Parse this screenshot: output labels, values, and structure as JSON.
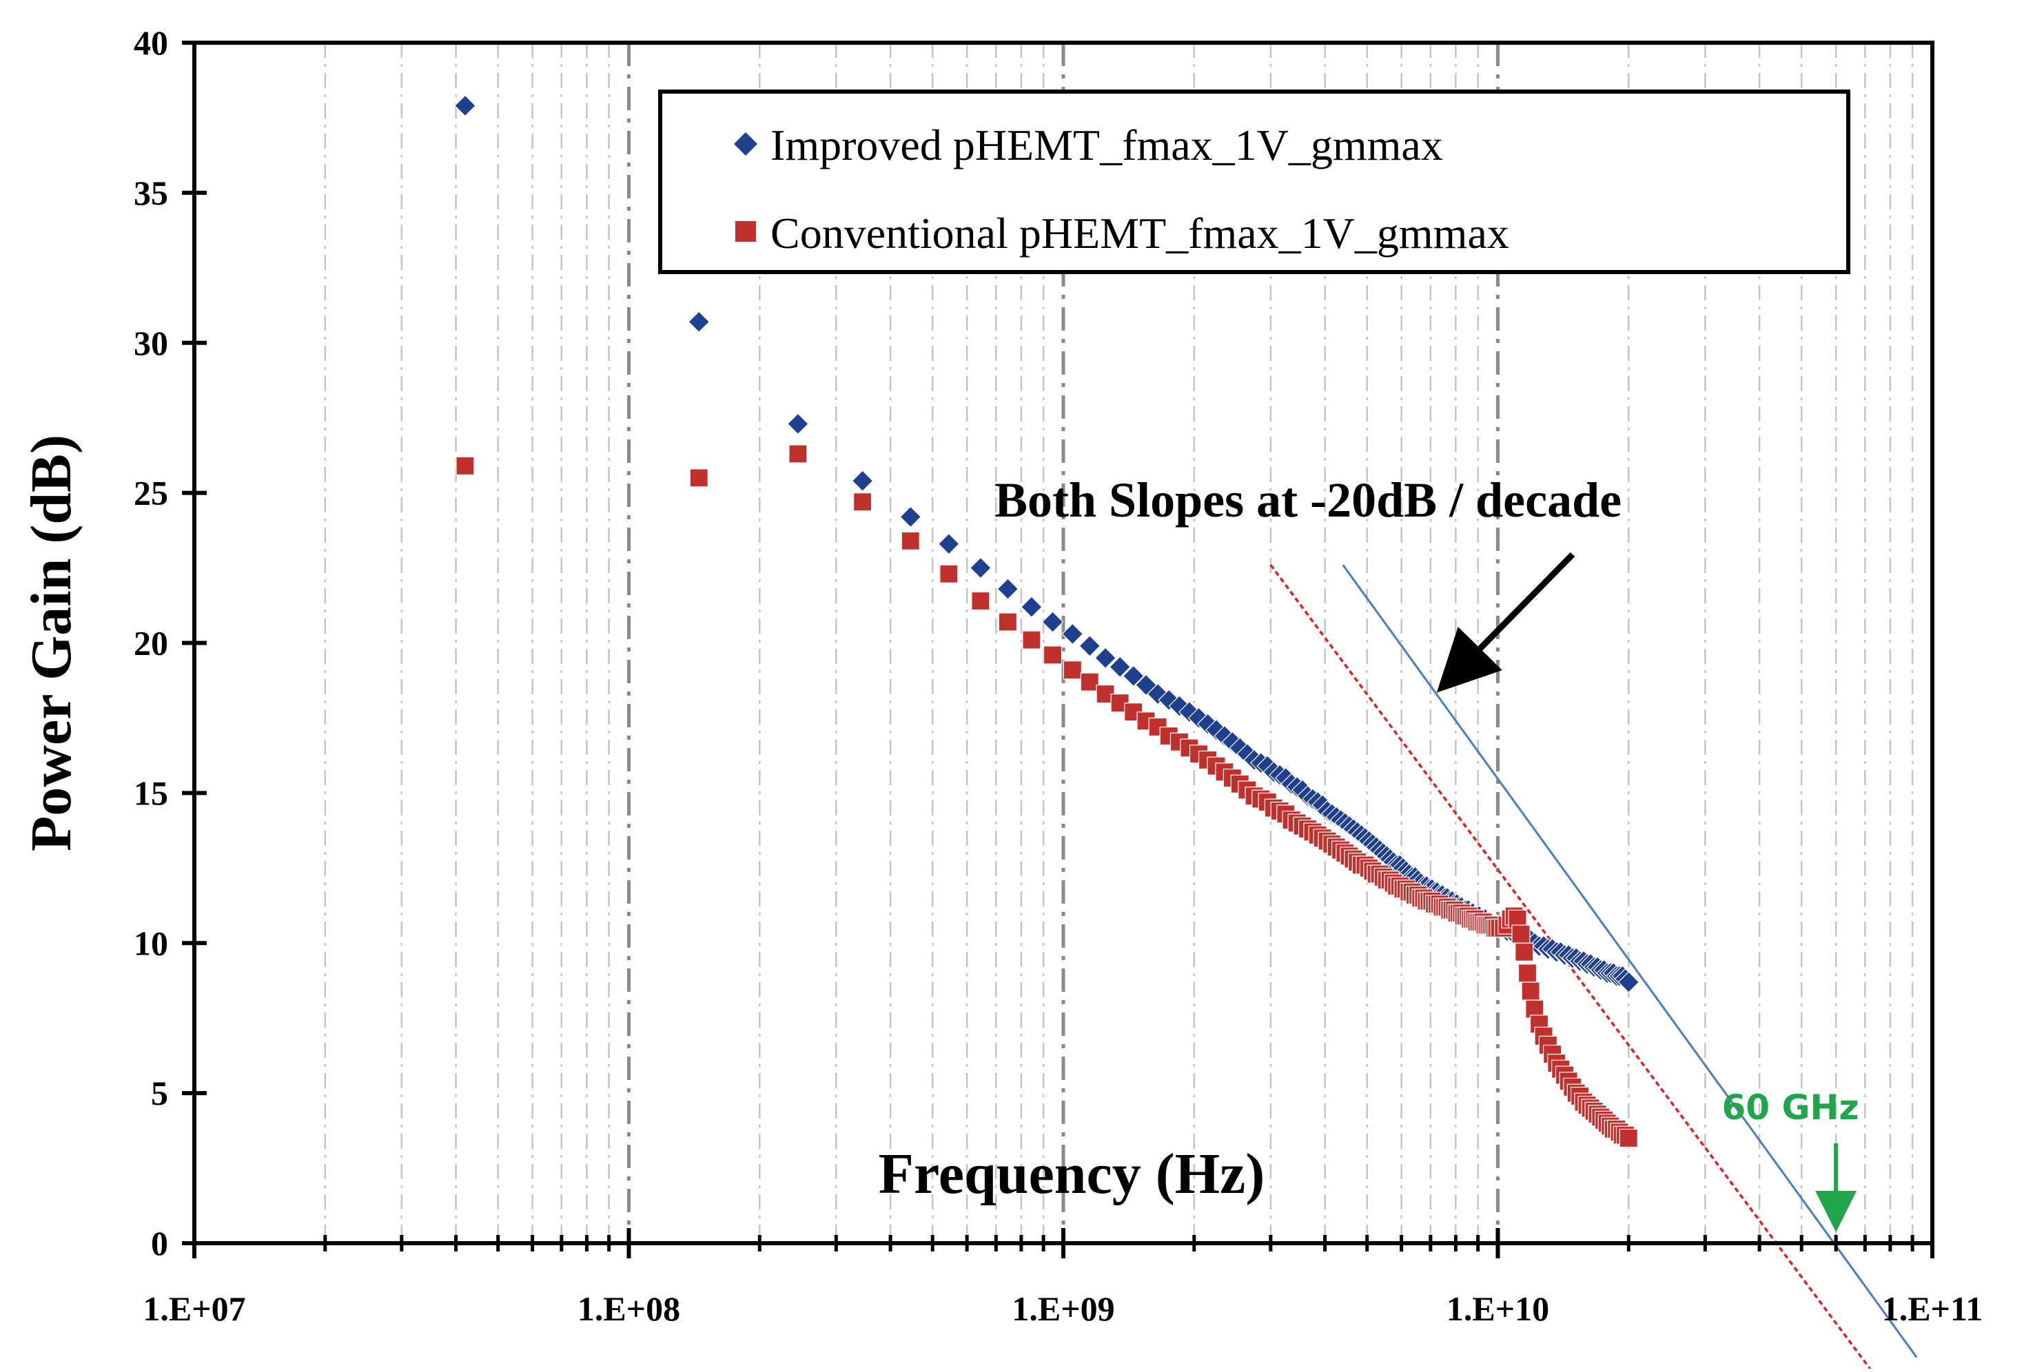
{
  "chart_data": {
    "type": "scatter",
    "xlabel": "Frequency (Hz)",
    "ylabel": "Power Gain (dB)",
    "x_scale": "log",
    "xlim": [
      10000000,
      100000000000
    ],
    "ylim": [
      0,
      40
    ],
    "x_ticks": [
      10000000,
      100000000,
      1000000000,
      10000000000,
      100000000000
    ],
    "x_tick_labels": [
      "1.E+07",
      "1.E+08",
      "1.E+09",
      "1.E+10",
      "1.E+11"
    ],
    "y_ticks": [
      0,
      5,
      10,
      15,
      20,
      25,
      30,
      35,
      40
    ],
    "y_tick_labels": [
      "0",
      "5",
      "10",
      "15",
      "20",
      "25",
      "30",
      "35",
      "40"
    ],
    "grid": "vertical dashed, major and minor",
    "legend_position": "top-right",
    "series": [
      {
        "name": "Improved pHEMT_fmax_1V_gmmax",
        "marker": "diamond",
        "color": "#1f3f8f",
        "x": [
          42000000,
          145000000,
          245000000,
          345000000,
          445000000,
          545000000,
          645000000,
          745000000,
          845000000,
          945000000,
          1050000000,
          1150000000,
          1250000000,
          1350000000,
          1450000000,
          1550000000,
          1650000000,
          1750000000,
          1850000000,
          1950000000,
          2050000000,
          2150000000,
          2250000000,
          2350000000,
          2450000000,
          2550000000,
          2650000000,
          2750000000,
          2850000000,
          2950000000,
          3050000000,
          3150000000,
          3250000000,
          3350000000,
          3450000000,
          3550000000,
          3650000000,
          3750000000,
          3850000000,
          3950000000,
          4050000000,
          4150000000,
          4250000000,
          4350000000,
          4450000000,
          4550000000,
          4650000000,
          4750000000,
          4850000000,
          4950000000,
          5050000000,
          5150000000,
          5250000000,
          5350000000,
          5450000000,
          5550000000,
          5650000000,
          5750000000,
          5850000000,
          5950000000,
          6050000000,
          6150000000,
          6250000000,
          6350000000,
          6450000000,
          6550000000,
          6650000000,
          6750000000,
          6850000000,
          6950000000,
          7050000000,
          7150000000,
          7250000000,
          7350000000,
          7450000000,
          7550000000,
          7650000000,
          7750000000,
          7850000000,
          7950000000,
          8050000000,
          8150000000,
          8250000000,
          8350000000,
          8450000000,
          8550000000,
          8650000000,
          8750000000,
          8850000000,
          8950000000,
          9050000000,
          9150000000,
          9250000000,
          9350000000,
          9450000000,
          9550000000,
          9650000000,
          9750000000,
          9850000000,
          9950000000,
          10100000000,
          10300000000,
          10500000000,
          10700000000,
          10900000000,
          11100000000,
          11300000000,
          11500000000,
          11700000000,
          11900000000,
          12150000000,
          12450000000,
          12750000000,
          13050000000,
          13350000000,
          13650000000,
          13950000000,
          14250000000,
          14550000000,
          14850000000,
          15150000000,
          15450000000,
          15750000000,
          16050000000,
          16350000000,
          16650000000,
          16950000000,
          17250000000,
          17550000000,
          17850000000,
          18150000000,
          18450000000,
          18750000000,
          19050000000,
          19350000000,
          19650000000,
          20000000000
        ],
        "y": [
          37.9,
          30.7,
          27.3,
          25.4,
          24.2,
          23.3,
          22.5,
          21.8,
          21.2,
          20.7,
          20.3,
          19.9,
          19.5,
          19.2,
          18.9,
          18.6,
          18.3,
          18.1,
          17.9,
          17.7,
          17.5,
          17.3,
          17.1,
          16.9,
          16.7,
          16.5,
          16.3,
          16.1,
          16.0,
          15.9,
          15.7,
          15.6,
          15.5,
          15.3,
          15.2,
          15.1,
          14.9,
          14.8,
          14.7,
          14.6,
          14.4,
          14.3,
          14.2,
          14.1,
          14.0,
          13.9,
          13.8,
          13.7,
          13.6,
          13.5,
          13.4,
          13.3,
          13.2,
          13.1,
          13.0,
          12.9,
          12.8,
          12.7,
          12.6,
          12.6,
          12.5,
          12.4,
          12.3,
          12.2,
          12.2,
          12.1,
          12.0,
          11.9,
          11.9,
          11.8,
          11.8,
          11.7,
          11.7,
          11.6,
          11.6,
          11.5,
          11.5,
          11.4,
          11.4,
          11.3,
          11.3,
          11.2,
          11.2,
          11.1,
          11.1,
          11.1,
          11.0,
          11.0,
          10.9,
          10.9,
          10.9,
          10.8,
          10.8,
          10.8,
          10.7,
          10.7,
          10.7,
          10.6,
          10.6,
          10.6,
          10.5,
          10.5,
          10.4,
          10.4,
          10.3,
          10.3,
          10.2,
          10.2,
          10.1,
          10.1,
          10.0,
          9.9,
          9.9,
          9.8,
          9.8,
          9.7,
          9.7,
          9.6,
          9.6,
          9.5,
          9.5,
          9.4,
          9.4,
          9.3,
          9.3,
          9.2,
          9.2,
          9.1,
          9.1,
          9.0,
          9.0,
          9.0,
          8.9,
          8.9,
          8.9,
          8.8,
          8.7
        ]
      },
      {
        "name": "Conventional pHEMT_fmax_1V_gmmax",
        "marker": "square",
        "color": "#c0302c",
        "x": [
          42000000,
          145000000,
          245000000,
          345000000,
          445000000,
          545000000,
          645000000,
          745000000,
          845000000,
          945000000,
          1050000000,
          1150000000,
          1250000000,
          1350000000,
          1450000000,
          1550000000,
          1650000000,
          1750000000,
          1850000000,
          1950000000,
          2050000000,
          2150000000,
          2250000000,
          2350000000,
          2450000000,
          2550000000,
          2650000000,
          2750000000,
          2850000000,
          2950000000,
          3050000000,
          3150000000,
          3250000000,
          3350000000,
          3450000000,
          3550000000,
          3650000000,
          3750000000,
          3850000000,
          3950000000,
          4050000000,
          4150000000,
          4250000000,
          4350000000,
          4450000000,
          4550000000,
          4650000000,
          4750000000,
          4850000000,
          4950000000,
          5050000000,
          5150000000,
          5250000000,
          5350000000,
          5450000000,
          5550000000,
          5650000000,
          5750000000,
          5850000000,
          5950000000,
          6050000000,
          6150000000,
          6250000000,
          6350000000,
          6450000000,
          6550000000,
          6650000000,
          6750000000,
          6850000000,
          6950000000,
          7050000000,
          7150000000,
          7250000000,
          7350000000,
          7450000000,
          7550000000,
          7650000000,
          7750000000,
          7850000000,
          7950000000,
          8050000000,
          8150000000,
          8250000000,
          8350000000,
          8450000000,
          8550000000,
          8650000000,
          8750000000,
          8850000000,
          8950000000,
          9050000000,
          9150000000,
          9250000000,
          9350000000,
          9450000000,
          9550000000,
          9650000000,
          9750000000,
          9850000000,
          9950000000,
          10100000000,
          10300000000,
          10500000000,
          10700000000,
          10900000000,
          11100000000,
          11300000000,
          11500000000,
          11700000000,
          11900000000,
          12150000000,
          12450000000,
          12750000000,
          13050000000,
          13350000000,
          13650000000,
          13950000000,
          14250000000,
          14550000000,
          14850000000,
          15150000000,
          15450000000,
          15750000000,
          16050000000,
          16350000000,
          16650000000,
          16950000000,
          17250000000,
          17550000000,
          17850000000,
          18150000000,
          18450000000,
          18750000000,
          19050000000,
          19350000000,
          19650000000,
          20000000000
        ],
        "y": [
          25.9,
          25.5,
          26.3,
          24.7,
          23.4,
          22.3,
          21.4,
          20.7,
          20.1,
          19.6,
          19.1,
          18.7,
          18.3,
          18.0,
          17.7,
          17.4,
          17.2,
          16.9,
          16.7,
          16.5,
          16.3,
          16.1,
          15.9,
          15.7,
          15.5,
          15.3,
          15.1,
          14.9,
          14.8,
          14.7,
          14.5,
          14.4,
          14.3,
          14.1,
          14.0,
          13.9,
          13.8,
          13.7,
          13.6,
          13.5,
          13.4,
          13.3,
          13.2,
          13.1,
          13.0,
          12.9,
          12.8,
          12.7,
          12.6,
          12.6,
          12.5,
          12.4,
          12.3,
          12.3,
          12.2,
          12.1,
          12.1,
          12.0,
          11.9,
          11.9,
          11.8,
          11.8,
          11.7,
          11.7,
          11.6,
          11.6,
          11.5,
          11.5,
          11.4,
          11.4,
          11.4,
          11.3,
          11.3,
          11.3,
          11.2,
          11.2,
          11.2,
          11.1,
          11.1,
          11.1,
          11.0,
          11.0,
          11.0,
          10.9,
          10.9,
          10.9,
          10.8,
          10.8,
          10.8,
          10.7,
          10.7,
          10.7,
          10.7,
          10.6,
          10.6,
          10.6,
          10.6,
          10.6,
          10.5,
          10.5,
          10.5,
          10.5,
          10.6,
          10.8,
          10.9,
          10.8,
          10.3,
          9.7,
          9.0,
          8.4,
          7.8,
          7.3,
          6.9,
          6.6,
          6.3,
          6.0,
          5.8,
          5.6,
          5.4,
          5.2,
          5.0,
          4.9,
          4.7,
          4.6,
          4.5,
          4.4,
          4.3,
          4.2,
          4.1,
          4.0,
          3.9,
          3.8,
          3.8,
          3.7,
          3.6,
          3.6,
          3.5
        ]
      }
    ],
    "reference_lines": [
      {
        "style": "solid",
        "color": "#4a7cc0",
        "x1": 4400000000,
        "y1": 22.6,
        "x2": 92000000000,
        "y2": -3.8
      },
      {
        "style": "dashed",
        "color": "#e02020",
        "x1": 3000000000,
        "y1": 22.6,
        "x2": 72000000000,
        "y2": -4.2
      }
    ],
    "annotations": [
      {
        "text": "Both Slopes at -20dB / decade",
        "arrow": true,
        "arrow_to": {
          "x": 6500000000,
          "y": 18.7
        },
        "text_at": {
          "x": 4800000000,
          "y": 24.8
        }
      },
      {
        "text": "60 GHz",
        "color": "#1fa64a",
        "arrow": true,
        "arrow_to": {
          "x": 60000000000,
          "y": 0.6
        },
        "text_at": {
          "x": 60000000000,
          "y": 4.5
        }
      }
    ]
  }
}
